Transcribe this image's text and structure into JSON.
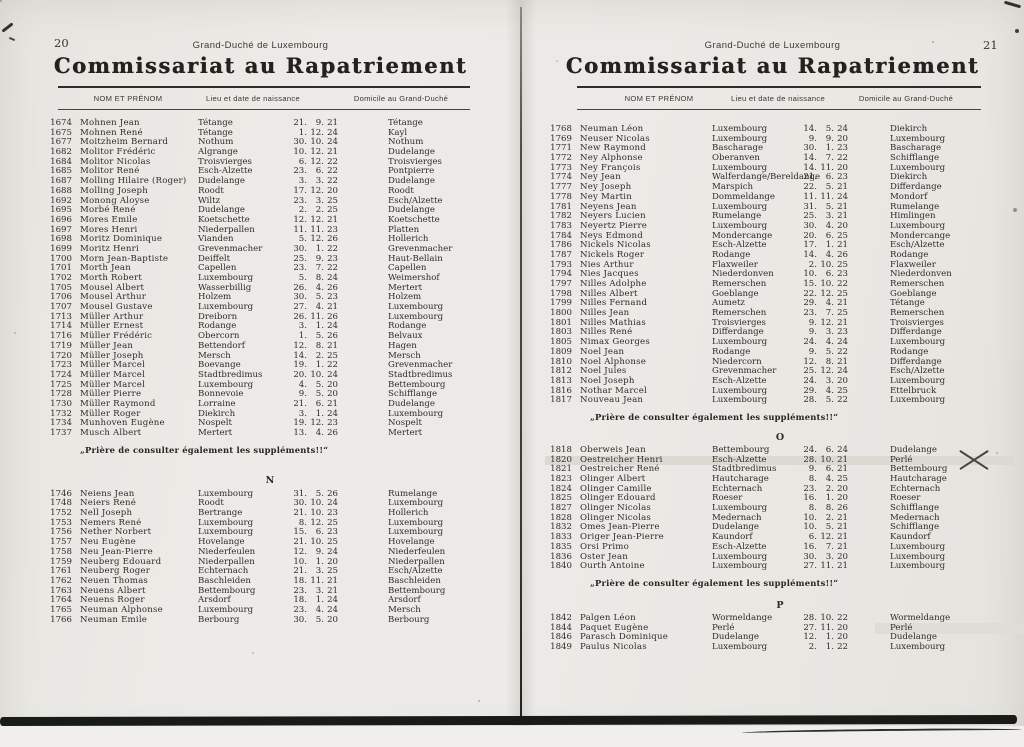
{
  "colors": {
    "paper": "#ECEAE6",
    "ink": "#2E2C29",
    "highlight": "#DCD9D2",
    "band": "#191B18"
  },
  "note": "„Prière de consulter également les suppléments!!“",
  "columns": {
    "name": "NOM ET PRÉNOM",
    "birth": "Lieu et date de naissance",
    "domicile": "Domicile au Grand-Duché"
  },
  "annotations": {
    "highlight_full_rows": [
      "1820"
    ],
    "highlight_partial_rows": [
      "1844"
    ],
    "x_mark_rows": [
      "1820"
    ]
  },
  "pages": [
    {
      "page_number": "20",
      "running_head": "Grand-Duché de Luxembourg",
      "title": "Commissariat au Rapatriement",
      "sections": [
        {
          "letter": "",
          "note_after": true,
          "rows": [
            [
              "1674",
              "Mohnen Jean",
              "Tétange",
              "21. 9. 21",
              "Tétange"
            ],
            [
              "1675",
              "Mohnen René",
              "Tétange",
              "1. 12. 24",
              "Kayl"
            ],
            [
              "1677",
              "Moitzheim Bernard",
              "Nothum",
              "30. 10. 24",
              "Nothum"
            ],
            [
              "1682",
              "Molitor Frédéric",
              "Algrange",
              "10. 12. 21",
              "Dudelange"
            ],
            [
              "1684",
              "Molitor Nicolas",
              "Troisvierges",
              "6. 12. 22",
              "Troisvierges"
            ],
            [
              "1685",
              "Molitor René",
              "Esch-Alzette",
              "23. 6. 22",
              "Pontpierre"
            ],
            [
              "1687",
              "Molling Hilaire (Roger)",
              "Dudelange",
              "3. 3. 22",
              "Dudelange"
            ],
            [
              "1688",
              "Molling Joseph",
              "Roodt",
              "17. 12. 20",
              "Roodt"
            ],
            [
              "1692",
              "Monong Aloyse",
              "Wiltz",
              "23. 3. 25",
              "Esch/Alzette"
            ],
            [
              "1695",
              "Morbé René",
              "Dudelange",
              "2. 2. 25",
              "Dudelange"
            ],
            [
              "1696",
              "Mores Emile",
              "Koetschette",
              "12. 12. 21",
              "Koetschette"
            ],
            [
              "1697",
              "Mores Henri",
              "Niederpallen",
              "11. 11. 23",
              "Platten"
            ],
            [
              "1698",
              "Moritz Dominique",
              "Vianden",
              "5. 12. 26",
              "Hollerich"
            ],
            [
              "1699",
              "Moritz Henri",
              "Grevenmacher",
              "30. 1. 22",
              "Grevenmacher"
            ],
            [
              "1700",
              "Morn Jean-Baptiste",
              "Deiffelt",
              "25. 9. 23",
              "Haut-Bellain"
            ],
            [
              "1701",
              "Morth Jean",
              "Capellen",
              "23. 7. 22",
              "Capellen"
            ],
            [
              "1702",
              "Morth Robert",
              "Luxembourg",
              "5. 8. 24",
              "Weimershof"
            ],
            [
              "1705",
              "Mousel Albert",
              "Wasserbillig",
              "26. 4. 26",
              "Mertert"
            ],
            [
              "1706",
              "Mousel Arthur",
              "Holzem",
              "30. 5. 23",
              "Holzem"
            ],
            [
              "1707",
              "Mousel Gustave",
              "Luxembourg",
              "27. 4. 21",
              "Luxembourg"
            ],
            [
              "1713",
              "Müller Arthur",
              "Dreiborn",
              "26. 11. 26",
              "Luxembourg"
            ],
            [
              "1714",
              "Müller Ernest",
              "Rodange",
              "3. 1. 24",
              "Rodange"
            ],
            [
              "1716",
              "Müller Frédéric",
              "Obercorn",
              "1. 5. 26",
              "Belvaux"
            ],
            [
              "1719",
              "Müller Jean",
              "Bettendorf",
              "12. 8. 21",
              "Hagen"
            ],
            [
              "1720",
              "Müller Joseph",
              "Mersch",
              "14. 2. 25",
              "Mersch"
            ],
            [
              "1723",
              "Müller Marcel",
              "Boevange",
              "19. 1. 22",
              "Grevenmacher"
            ],
            [
              "1724",
              "Müller Marcel",
              "Stadtbredimus",
              "20. 10. 24",
              "Stadtbredimus"
            ],
            [
              "1725",
              "Müller Marcel",
              "Luxembourg",
              "4. 5. 20",
              "Bettembourg"
            ],
            [
              "1728",
              "Müller Pierre",
              "Bonnevoie",
              "9. 5. 20",
              "Schifflange"
            ],
            [
              "1730",
              "Müller Raymond",
              "Lorraine",
              "21. 6. 21",
              "Dudelange"
            ],
            [
              "1732",
              "Müller Roger",
              "Diekirch",
              "3. 1. 24",
              "Luxembourg"
            ],
            [
              "1734",
              "Munhoven Eugène",
              "Nospelt",
              "19. 12. 23",
              "Nospelt"
            ],
            [
              "1737",
              "Musch Albert",
              "Mertert",
              "13. 4. 26",
              "Mertert"
            ]
          ]
        },
        {
          "letter": "N",
          "note_after": false,
          "rows": [
            [
              "1746",
              "Neiens Jean",
              "Luxembourg",
              "31. 5. 26",
              "Rumelange"
            ],
            [
              "1748",
              "Neiers René",
              "Roodt",
              "30. 10. 24",
              "Luxembourg"
            ],
            [
              "1752",
              "Nell Joseph",
              "Bertrange",
              "21. 10. 23",
              "Hollerich"
            ],
            [
              "1753",
              "Nemers René",
              "Luxembourg",
              "8. 12. 25",
              "Luxembourg"
            ],
            [
              "1756",
              "Nether Norbert",
              "Luxembourg",
              "15. 6. 23",
              "Luxembourg"
            ],
            [
              "1757",
              "Neu Eugène",
              "Hovelange",
              "21. 10. 25",
              "Hovelange"
            ],
            [
              "1758",
              "Neu Jean-Pierre",
              "Niederfeulen",
              "12. 9. 24",
              "Niederfeulen"
            ],
            [
              "1759",
              "Neuberg Edouard",
              "Niederpallen",
              "10. 1. 20",
              "Niederpallen"
            ],
            [
              "1761",
              "Neuberg Roger",
              "Echternach",
              "21. 3. 25",
              "Esch/Alzette"
            ],
            [
              "1762",
              "Neuen Thomas",
              "Baschleiden",
              "18. 11. 21",
              "Baschleiden"
            ],
            [
              "1763",
              "Neuens Albert",
              "Bettembourg",
              "23. 3. 21",
              "Bettembourg"
            ],
            [
              "1764",
              "Neuens Roger",
              "Arsdorf",
              "18. 1. 24",
              "Arsdorf"
            ],
            [
              "1765",
              "Neuman Alphonse",
              "Luxembourg",
              "23. 4. 24",
              "Mersch"
            ],
            [
              "1766",
              "Neuman Emile",
              "Berbourg",
              "30. 5. 20",
              "Berbourg"
            ]
          ]
        }
      ]
    },
    {
      "page_number": "21",
      "running_head": "Grand-Duché de Luxembourg",
      "title": "Commissariat au Rapatriement",
      "sections": [
        {
          "letter": "",
          "note_after": true,
          "rows": [
            [
              "1768",
              "Neuman Léon",
              "Luxembourg",
              "14. 5. 24",
              "Diekirch"
            ],
            [
              "1769",
              "Neuser Nicolas",
              "Luxembourg",
              "9. 9. 20",
              "Luxembourg"
            ],
            [
              "1771",
              "New Raymond",
              "Bascharage",
              "30. 1. 23",
              "Bascharage"
            ],
            [
              "1772",
              "Ney Alphonse",
              "Oberanven",
              "14. 7. 22",
              "Schifflange"
            ],
            [
              "1773",
              "Ney François",
              "Luxembourg",
              "14. 11. 20",
              "Luxembourg"
            ],
            [
              "1774",
              "Ney Jean",
              "Walferdange/Bereldange",
              "21. 6. 23",
              "Diekirch"
            ],
            [
              "1777",
              "Ney Joseph",
              "Marspich",
              "22. 5. 21",
              "Differdange"
            ],
            [
              "1778",
              "Ney Martin",
              "Dommeldange",
              "11. 11. 24",
              "Mondorf"
            ],
            [
              "1781",
              "Neyens Jean",
              "Luxembourg",
              "31. 5. 21",
              "Rumelange"
            ],
            [
              "1782",
              "Neyers Lucien",
              "Rumelange",
              "25. 3. 21",
              "Himlingen"
            ],
            [
              "1783",
              "Neyertz Pierre",
              "Luxembourg",
              "30. 4. 20",
              "Luxembourg"
            ],
            [
              "1784",
              "Neys Edmond",
              "Mondercange",
              "20. 6. 25",
              "Mondercange"
            ],
            [
              "1786",
              "Nickels Nicolas",
              "Esch-Alzette",
              "17. 1. 21",
              "Esch/Alzette"
            ],
            [
              "1787",
              "Nickels Roger",
              "Rodange",
              "14. 4. 26",
              "Rodange"
            ],
            [
              "1793",
              "Nies Arthur",
              "Flaxweiler",
              "2. 10. 25",
              "Flaxweiler"
            ],
            [
              "1794",
              "Nies Jacques",
              "Niederdonven",
              "10. 6. 23",
              "Niederdonven"
            ],
            [
              "1797",
              "Nilles Adolphe",
              "Remerschen",
              "15. 10. 22",
              "Remerschen"
            ],
            [
              "1798",
              "Nilles Albert",
              "Goeblange",
              "22. 12. 25",
              "Goeblange"
            ],
            [
              "1799",
              "Nilles Fernand",
              "Aumetz",
              "29. 4. 21",
              "Tétange"
            ],
            [
              "1800",
              "Nilles Jean",
              "Remerschen",
              "23. 7. 25",
              "Remerschen"
            ],
            [
              "1801",
              "Nilles Mathias",
              "Troisvierges",
              "9. 12. 21",
              "Troisvierges"
            ],
            [
              "1803",
              "Nilles René",
              "Differdange",
              "9. 3. 23",
              "Differdange"
            ],
            [
              "1805",
              "Nimax Georges",
              "Luxembourg",
              "24. 4. 24",
              "Luxembourg"
            ],
            [
              "1809",
              "Noel Jean",
              "Rodange",
              "9. 5. 22",
              "Rodange"
            ],
            [
              "1810",
              "Noel Alphonse",
              "Niedercorn",
              "12. 8. 21",
              "Differdange"
            ],
            [
              "1812",
              "Noel Jules",
              "Grevenmacher",
              "25. 12. 24",
              "Esch/Alzette"
            ],
            [
              "1813",
              "Noel Joseph",
              "Esch-Alzette",
              "24. 3. 20",
              "Luxembourg"
            ],
            [
              "1816",
              "Nothar Marcel",
              "Luxembourg",
              "29. 4. 25",
              "Ettelbruck"
            ],
            [
              "1817",
              "Nouveau Jean",
              "Luxembourg",
              "28. 5. 22",
              "Luxembourg"
            ]
          ]
        },
        {
          "letter": "O",
          "note_after": true,
          "rows": [
            [
              "1818",
              "Oberweis Jean",
              "Bettembourg",
              "24. 6. 24",
              "Dudelange"
            ],
            [
              "1820",
              "Oestreicher Henri",
              "Esch-Alzette",
              "28. 10. 21",
              "Perlé"
            ],
            [
              "1821",
              "Oestreicher René",
              "Stadtbredimus",
              "9. 6. 21",
              "Bettembourg"
            ],
            [
              "1823",
              "Olinger Albert",
              "Hautcharage",
              "8. 4. 25",
              "Hautcharage"
            ],
            [
              "1824",
              "Olinger Camille",
              "Echternach",
              "23. 2. 20",
              "Echternach"
            ],
            [
              "1825",
              "Olinger Edouard",
              "Roeser",
              "16. 1. 20",
              "Roeser"
            ],
            [
              "1827",
              "Olinger Nicolas",
              "Luxembourg",
              "8. 8. 26",
              "Schifflange"
            ],
            [
              "1828",
              "Olinger Nicolas",
              "Medernach",
              "10. 2. 21",
              "Medernach"
            ],
            [
              "1832",
              "Omes Jean-Pierre",
              "Dudelange",
              "10. 5. 21",
              "Schifflange"
            ],
            [
              "1833",
              "Origer Jean-Pierre",
              "Kaundorf",
              "6. 12. 21",
              "Kaundorf"
            ],
            [
              "1835",
              "Orsi Primo",
              "Esch-Alzette",
              "16. 7. 21",
              "Luxembourg"
            ],
            [
              "1836",
              "Oster Jean",
              "Luxembourg",
              "30. 3. 20",
              "Luxembourg"
            ],
            [
              "1840",
              "Ourth Antoine",
              "Luxembourg",
              "27. 11. 21",
              "Luxembourg"
            ]
          ]
        },
        {
          "letter": "P",
          "note_after": false,
          "rows": [
            [
              "1842",
              "Palgen Léon",
              "Wormeldange",
              "28. 10. 22",
              "Wormeldange"
            ],
            [
              "1844",
              "Paquet Eugène",
              "Perlé",
              "27. 11. 20",
              "Perlé"
            ],
            [
              "1846",
              "Parasch Dominique",
              "Dudelange",
              "12. 1. 20",
              "Dudelange"
            ],
            [
              "1849",
              "Paulus Nicolas",
              "Luxembourg",
              "2. 1. 22",
              "Luxembourg"
            ]
          ]
        }
      ]
    }
  ]
}
